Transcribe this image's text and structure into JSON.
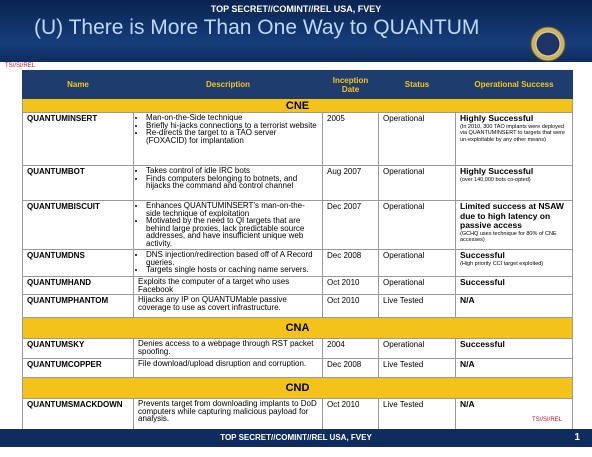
{
  "header": {
    "classification": "TOP SECRET//COMINT//REL USA, FVEY",
    "title": "(U) There is More Than One Way to QUANTUM"
  },
  "marking_top": "TS//SI/REL",
  "table": {
    "columns": [
      "Name",
      "Description",
      "Inception Date",
      "Status",
      "Operational Success"
    ],
    "sections": [
      {
        "label": "CNE",
        "rows": [
          {
            "name": "QUANTUMINSERT",
            "bullets": [
              "Man-on-the-Side technique",
              "Briefly hi-jacks connections to a terrorist website",
              "Re-directs the target to a TAO server (FOXACID) for implantation"
            ],
            "date": "2005",
            "status": "Operational",
            "success": "Highly Successful",
            "success_note": "(In 2010, 300 TAO implants were deployed via QUANTUMINSERT to targets that were un-exploitable by any other means)"
          },
          {
            "name": "QUANTUMBOT",
            "bullets": [
              "Takes control of idle IRC bots",
              "Finds computers belonging to botnets, and hijacks the command and control channel"
            ],
            "date": "Aug 2007",
            "status": "Operational",
            "success": "Highly Successful",
            "success_note": "(over 140,000 bots co-opted)"
          },
          {
            "name": "QUANTUMBISCUIT",
            "bullets": [
              "Enhances QUANTUMINSERT's man-on-the-side technique of exploitation",
              "Motivated by the need to QI targets that are behind large proxies, lack predictable source addresses, and have insufficient unique web activity."
            ],
            "date": "Dec 2007",
            "status": "Operational",
            "success": "Limited success at NSAW due to high latency on passive access",
            "success_note": "(GCHQ uses technique for 80% of CNE accesses)"
          },
          {
            "name": "QUANTUMDNS",
            "bullets": [
              "DNS injection/redirection based off of A Record queries.",
              "Targets single hosts or caching name servers."
            ],
            "date": "Dec 2008",
            "status": "Operational",
            "success": "Successful",
            "success_note": "(High priority CCI target exploited)"
          },
          {
            "name": "QUANTUMHAND",
            "description": "Exploits the computer of a target who uses Facebook",
            "date": "Oct 2010",
            "status": "Operational",
            "success": "Successful"
          },
          {
            "name": "QUANTUMPHANTOM",
            "description": "Hijacks any IP on QUANTUMable passive coverage to use as covert infrastructure.",
            "date": "Oct 2010",
            "status": "Live Tested",
            "success": "N/A"
          }
        ]
      },
      {
        "label": "CNA",
        "rows": [
          {
            "name": "QUANTUMSKY",
            "description": "Denies access to a webpage through RST packet spoofing.",
            "date": "2004",
            "status": "Operational",
            "success": "Successful"
          },
          {
            "name": "QUANTUMCOPPER",
            "description": "File download/upload disruption and corruption.",
            "date": "Dec 2008",
            "status": "Live Tested",
            "success": "N/A"
          }
        ]
      },
      {
        "label": "CND",
        "rows": [
          {
            "name": "QUANTUMSMACKDOWN",
            "description": "Prevents target from downloading implants to DoD computers while capturing malicious payload for analysis.",
            "date": "Oct 2010",
            "status": "Live Tested",
            "success": "N/A"
          }
        ]
      }
    ]
  },
  "marking_bottom": "TS//SI/REL",
  "footer": {
    "classification": "TOP SECRET//COMINT//REL USA, FVEY",
    "page": "1"
  }
}
